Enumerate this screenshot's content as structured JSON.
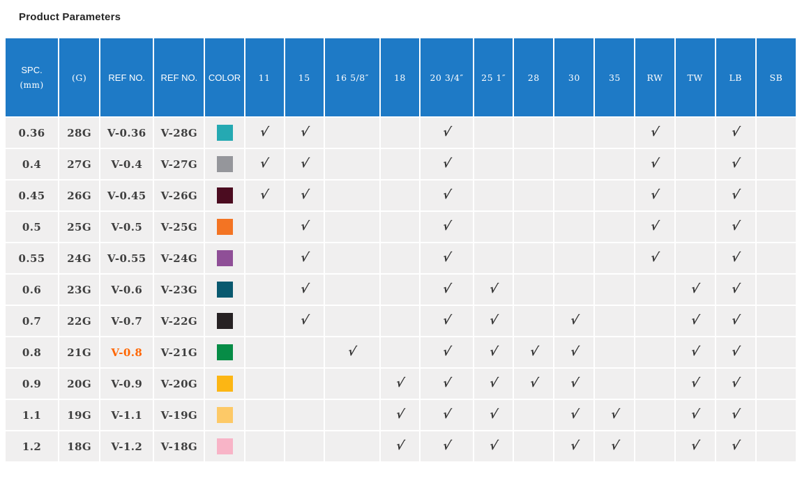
{
  "page": {
    "title": "Product Parameters"
  },
  "accent": {
    "header_bg": "#1e7ac6",
    "cell_bg": "#f0efef",
    "text_color": "#3f3f3f",
    "check_color": "#333333",
    "link_highlight": "#ff6600"
  },
  "table": {
    "checkmark_glyph": "√",
    "columns": [
      {
        "id": "spc",
        "label": "SPC.",
        "sublabel": "(mm)"
      },
      {
        "id": "gauge",
        "label": "(G)"
      },
      {
        "id": "ref-no-1",
        "label": "REF NO."
      },
      {
        "id": "ref-no-2",
        "label": "REF NO."
      },
      {
        "id": "color",
        "label": "COLOR"
      },
      {
        "id": "size-11",
        "label": "11"
      },
      {
        "id": "size-15",
        "label": "15"
      },
      {
        "id": "size-16",
        "label": "16 5/8″"
      },
      {
        "id": "size-18",
        "label": "18"
      },
      {
        "id": "size-20",
        "label": "20 3/4″"
      },
      {
        "id": "size-25",
        "label": "25 1″"
      },
      {
        "id": "size-28",
        "label": "28"
      },
      {
        "id": "size-30",
        "label": "30"
      },
      {
        "id": "size-35",
        "label": "35"
      },
      {
        "id": "rw",
        "label": "RW"
      },
      {
        "id": "tw",
        "label": "TW"
      },
      {
        "id": "lb",
        "label": "LB"
      },
      {
        "id": "sb",
        "label": "SB"
      }
    ],
    "rows": [
      {
        "spc": "0.36",
        "gauge": "28G",
        "ref1": "V-0.36",
        "ref2": "V-28G",
        "swatch": "#25a9b2",
        "checks": [
          1,
          1,
          0,
          0,
          1,
          0,
          0,
          0,
          0,
          1,
          0,
          1,
          0
        ]
      },
      {
        "spc": "0.4",
        "gauge": "27G",
        "ref1": "V-0.4",
        "ref2": "V-27G",
        "swatch": "#95969b",
        "checks": [
          1,
          1,
          0,
          0,
          1,
          0,
          0,
          0,
          0,
          1,
          0,
          1,
          0
        ]
      },
      {
        "spc": "0.45",
        "gauge": "26G",
        "ref1": "V-0.45",
        "ref2": "V-26G",
        "swatch": "#4b0c20",
        "checks": [
          1,
          1,
          0,
          0,
          1,
          0,
          0,
          0,
          0,
          1,
          0,
          1,
          0
        ]
      },
      {
        "spc": "0.5",
        "gauge": "25G",
        "ref1": "V-0.5",
        "ref2": "V-25G",
        "swatch": "#f37423",
        "checks": [
          0,
          1,
          0,
          0,
          1,
          0,
          0,
          0,
          0,
          1,
          0,
          1,
          0
        ]
      },
      {
        "spc": "0.55",
        "gauge": "24G",
        "ref1": "V-0.55",
        "ref2": "V-24G",
        "swatch": "#8f4f97",
        "checks": [
          0,
          1,
          0,
          0,
          1,
          0,
          0,
          0,
          0,
          1,
          0,
          1,
          0
        ]
      },
      {
        "spc": "0.6",
        "gauge": "23G",
        "ref1": "V-0.6",
        "ref2": "V-23G",
        "swatch": "#09596f",
        "checks": [
          0,
          1,
          0,
          0,
          1,
          1,
          0,
          0,
          0,
          0,
          1,
          1,
          0
        ]
      },
      {
        "spc": "0.7",
        "gauge": "22G",
        "ref1": "V-0.7",
        "ref2": "V-22G",
        "swatch": "#262123",
        "checks": [
          0,
          1,
          0,
          0,
          1,
          1,
          0,
          1,
          0,
          0,
          1,
          1,
          0
        ]
      },
      {
        "spc": "0.8",
        "gauge": "21G",
        "ref1": "V-0.8",
        "ref2": "V-21G",
        "swatch": "#068c46",
        "checks": [
          0,
          0,
          1,
          0,
          1,
          1,
          1,
          1,
          0,
          0,
          1,
          1,
          0
        ],
        "ref1_highlighted": true
      },
      {
        "spc": "0.9",
        "gauge": "20G",
        "ref1": "V-0.9",
        "ref2": "V-20G",
        "swatch": "#fcb614",
        "checks": [
          0,
          0,
          0,
          1,
          1,
          1,
          1,
          1,
          0,
          0,
          1,
          1,
          0
        ]
      },
      {
        "spc": "1.1",
        "gauge": "19G",
        "ref1": "V-1.1",
        "ref2": "V-19G",
        "swatch": "#fdc967",
        "checks": [
          0,
          0,
          0,
          1,
          1,
          1,
          0,
          1,
          1,
          0,
          1,
          1,
          0
        ]
      },
      {
        "spc": "1.2",
        "gauge": "18G",
        "ref1": "V-1.2",
        "ref2": "V-18G",
        "swatch": "#f8b4c7",
        "checks": [
          0,
          0,
          0,
          1,
          1,
          1,
          0,
          1,
          1,
          0,
          1,
          1,
          0
        ]
      }
    ]
  }
}
